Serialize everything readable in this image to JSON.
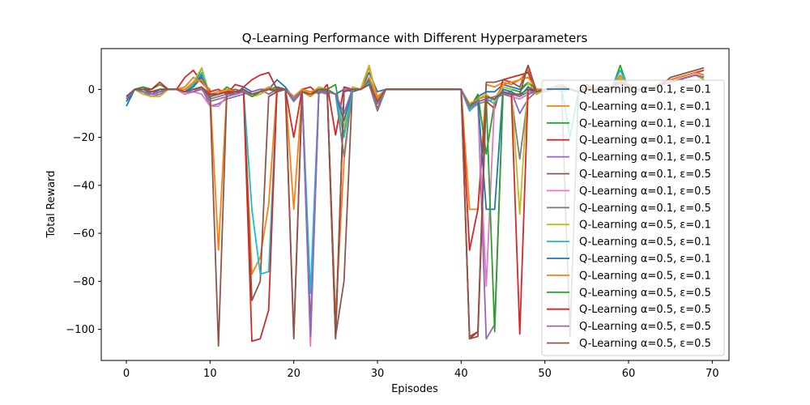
{
  "chart_data": {
    "type": "line",
    "title": "Q-Learning Performance with Different Hyperparameters",
    "xlabel": "Episodes",
    "ylabel": "Total Reward",
    "xlim": [
      -3,
      72
    ],
    "ylim": [
      -113,
      17
    ],
    "xticks": [
      0,
      10,
      20,
      30,
      40,
      50,
      60,
      70
    ],
    "yticks": [
      0,
      -20,
      -40,
      -60,
      -80,
      -100
    ],
    "xtick_labels": [
      "0",
      "10",
      "20",
      "30",
      "40",
      "50",
      "60",
      "70"
    ],
    "ytick_labels": [
      "0",
      "−20",
      "−40",
      "−60",
      "−80",
      "−100"
    ],
    "grid": false,
    "legend_position": "right",
    "x": [
      0,
      1,
      2,
      3,
      4,
      5,
      6,
      7,
      8,
      9,
      10,
      11,
      12,
      13,
      14,
      15,
      16,
      17,
      18,
      19,
      20,
      21,
      22,
      23,
      24,
      25,
      26,
      27,
      28,
      29,
      30,
      31,
      32,
      33,
      34,
      35,
      36,
      37,
      38,
      39,
      40,
      41,
      42,
      43,
      44,
      45,
      46,
      47,
      48,
      49,
      50,
      51,
      52,
      53,
      54,
      55,
      56,
      57,
      58,
      59,
      60,
      61,
      62,
      63,
      64,
      65,
      66,
      67,
      68,
      69
    ],
    "series": [
      {
        "name": "Q-Learning α=0.1, ε=0.1",
        "color": "#1f77b4",
        "values": [
          -7,
          0,
          1,
          -2,
          0,
          0,
          0,
          -1,
          2,
          6,
          -3,
          -2,
          0,
          -2,
          1,
          -1,
          0,
          0,
          4,
          1,
          -4,
          -1,
          -2,
          0,
          -1,
          -2,
          0,
          -1,
          0,
          7,
          -1,
          0,
          0,
          0,
          0,
          0,
          0,
          0,
          0,
          0,
          0,
          -7,
          -3,
          -1,
          -1,
          2,
          1,
          0,
          3,
          0,
          0,
          1,
          2,
          0,
          -1,
          1,
          0,
          0,
          1,
          3,
          2,
          0,
          0,
          1,
          2,
          3,
          4,
          5,
          6,
          5
        ]
      },
      {
        "name": "Q-Learning α=0.1, ε=0.1",
        "color": "#ff7f0e",
        "values": [
          -4,
          0,
          -2,
          -3,
          -1,
          0,
          0,
          1,
          5,
          3,
          0,
          -67,
          -1,
          -2,
          0,
          -77,
          -70,
          -48,
          1,
          0,
          -50,
          -1,
          -3,
          0,
          -2,
          -95,
          -30,
          0,
          0,
          9,
          -3,
          0,
          0,
          0,
          0,
          0,
          0,
          0,
          0,
          0,
          0,
          -50,
          -50,
          2,
          1,
          3,
          2,
          4,
          8,
          0,
          0,
          1,
          2,
          0,
          -1,
          1,
          0,
          0,
          1,
          6,
          2,
          0,
          0,
          1,
          3,
          4,
          5,
          6,
          7,
          6
        ]
      },
      {
        "name": "Q-Learning α=0.1, ε=0.1",
        "color": "#2ca02c",
        "values": [
          -5,
          0,
          1,
          0,
          2,
          0,
          0,
          0,
          1,
          9,
          -3,
          -2,
          1,
          -1,
          0,
          -3,
          -2,
          0,
          1,
          0,
          -5,
          0,
          -2,
          1,
          0,
          2,
          -19,
          1,
          0,
          4,
          -5,
          0,
          0,
          0,
          0,
          0,
          0,
          0,
          0,
          0,
          0,
          -8,
          -2,
          -27,
          -5,
          1,
          0,
          -1,
          3,
          -2,
          0,
          1,
          -1,
          0,
          -1,
          0,
          1,
          1,
          0,
          10,
          0,
          -1,
          1,
          0,
          2,
          3,
          4,
          5,
          6,
          4
        ]
      },
      {
        "name": "Q-Learning α=0.1, ε=0.1",
        "color": "#d62728",
        "values": [
          -3,
          0,
          0,
          0,
          3,
          0,
          0,
          5,
          8,
          3,
          -1,
          0,
          -2,
          2,
          1,
          4,
          6,
          7,
          0,
          0,
          -20,
          0,
          1,
          -2,
          2,
          -19,
          1,
          0,
          0,
          10,
          -5,
          0,
          0,
          0,
          0,
          0,
          0,
          0,
          0,
          0,
          0,
          -67,
          -50,
          -5,
          -8,
          4,
          5,
          6,
          7,
          -2,
          0,
          0,
          1,
          0,
          -1,
          1,
          0,
          0,
          1,
          4,
          2,
          0,
          0,
          1,
          3,
          4,
          5,
          6,
          7,
          8
        ]
      },
      {
        "name": "Q-Learning α=0.1, ε=0.5",
        "color": "#9467bd",
        "values": [
          -3,
          0,
          -1,
          -3,
          -2,
          0,
          0,
          -2,
          -1,
          1,
          -7,
          -6,
          -4,
          -3,
          -2,
          -1,
          0,
          -2,
          0,
          0,
          -4,
          -1,
          -104,
          -1,
          -2,
          -104,
          0,
          0,
          0,
          2,
          -8,
          0,
          0,
          0,
          0,
          0,
          0,
          0,
          0,
          0,
          0,
          -7,
          -5,
          -104,
          -98,
          -2,
          -1,
          -10,
          -4,
          -1,
          -1,
          0,
          1,
          0,
          -1,
          0,
          0,
          0,
          1,
          5,
          1,
          0,
          0,
          1,
          2,
          3,
          4,
          5,
          6,
          5
        ]
      },
      {
        "name": "Q-Learning α=0.1, ε=0.5",
        "color": "#8c564b",
        "values": [
          -3,
          0,
          0,
          -1,
          0,
          0,
          0,
          -1,
          -1,
          0,
          -3,
          -2,
          -1,
          0,
          -1,
          -88,
          -80,
          -3,
          -1,
          0,
          -4,
          -1,
          -99,
          0,
          0,
          -103,
          -80,
          0,
          0,
          3,
          -8,
          0,
          0,
          0,
          0,
          0,
          0,
          0,
          0,
          0,
          0,
          -103,
          -101,
          3,
          3,
          4,
          3,
          1,
          10,
          -1,
          0,
          1,
          2,
          0,
          -1,
          2,
          0,
          0,
          1,
          3,
          2,
          0,
          0,
          1,
          3,
          4,
          5,
          6,
          7,
          6
        ]
      },
      {
        "name": "Q-Learning α=0.1, ε=0.5",
        "color": "#e377c2",
        "values": [
          -3,
          0,
          -2,
          -3,
          -1,
          0,
          0,
          -2,
          -1,
          -2,
          -7,
          -7,
          -3,
          -2,
          -1,
          -2,
          -1,
          0,
          -1,
          0,
          -5,
          -1,
          -107,
          -1,
          -1,
          -2,
          -28,
          0,
          0,
          2,
          -6,
          0,
          0,
          0,
          0,
          0,
          0,
          0,
          0,
          0,
          0,
          -9,
          -6,
          -82,
          -4,
          -2,
          -3,
          -4,
          -2,
          -1,
          0,
          1,
          0,
          0,
          -1,
          0,
          0,
          0,
          1,
          2,
          1,
          0,
          0,
          1,
          2,
          3,
          4,
          5,
          6,
          5
        ]
      },
      {
        "name": "Q-Learning α=0.1, ε=0.5",
        "color": "#7f7f7f",
        "values": [
          -4,
          0,
          -1,
          -2,
          -1,
          0,
          0,
          -1,
          0,
          0,
          -5,
          -4,
          -3,
          -2,
          -1,
          -2,
          -1,
          0,
          -1,
          0,
          -5,
          -1,
          -2,
          -1,
          -1,
          -2,
          -28,
          0,
          0,
          2,
          -9,
          0,
          0,
          0,
          0,
          0,
          0,
          0,
          0,
          0,
          0,
          -8,
          -6,
          -5,
          -4,
          -2,
          -3,
          -29,
          -2,
          -1,
          0,
          1,
          0,
          -103,
          -1,
          0,
          0,
          0,
          1,
          4,
          1,
          0,
          0,
          1,
          2,
          3,
          4,
          5,
          6,
          5
        ]
      },
      {
        "name": "Q-Learning α=0.5, ε=0.1",
        "color": "#bcbd22",
        "values": [
          -3,
          0,
          -2,
          -3,
          -3,
          0,
          0,
          -1,
          3,
          9,
          -3,
          -2,
          0,
          -1,
          0,
          -3,
          -2,
          0,
          1,
          0,
          -3,
          0,
          -2,
          1,
          0,
          -2,
          -16,
          1,
          0,
          10,
          -5,
          0,
          0,
          0,
          0,
          0,
          0,
          0,
          0,
          0,
          0,
          -8,
          -4,
          -2,
          -5,
          1,
          0,
          -52,
          3,
          -2,
          0,
          1,
          -1,
          0,
          -1,
          0,
          1,
          1,
          0,
          5,
          0,
          -1,
          1,
          0,
          2,
          3,
          4,
          5,
          6,
          4
        ]
      },
      {
        "name": "Q-Learning α=0.5, ε=0.1",
        "color": "#17becf",
        "values": [
          -4,
          0,
          -1,
          -2,
          -1,
          0,
          0,
          -1,
          2,
          7,
          -3,
          -2,
          -1,
          -2,
          0,
          -50,
          -77,
          -76,
          0,
          0,
          -4,
          -1,
          -85,
          0,
          -1,
          -2,
          -20,
          0,
          0,
          3,
          -6,
          0,
          0,
          0,
          0,
          0,
          0,
          0,
          0,
          0,
          0,
          -9,
          -5,
          -4,
          -6,
          0,
          -1,
          -3,
          1,
          -1,
          0,
          0,
          1,
          -20,
          -1,
          0,
          0,
          0,
          1,
          8,
          1,
          0,
          0,
          1,
          2,
          3,
          4,
          5,
          6,
          5
        ]
      },
      {
        "name": "Q-Learning α=0.5, ε=0.1",
        "color": "#1f77b4",
        "values": [
          -5,
          0,
          -1,
          -2,
          -1,
          0,
          0,
          -1,
          1,
          5,
          -2,
          -2,
          -1,
          -2,
          -1,
          -2,
          -1,
          0,
          1,
          0,
          -3,
          -1,
          -2,
          0,
          -1,
          -2,
          -13,
          0,
          0,
          4,
          -4,
          0,
          0,
          0,
          0,
          0,
          0,
          0,
          0,
          0,
          0,
          -7,
          -4,
          -50,
          -50,
          0,
          -1,
          -3,
          1,
          -1,
          0,
          0,
          1,
          0,
          -1,
          0,
          0,
          0,
          1,
          4,
          1,
          0,
          0,
          1,
          2,
          3,
          4,
          5,
          6,
          5
        ]
      },
      {
        "name": "Q-Learning α=0.5, ε=0.1",
        "color": "#ff7f0e",
        "values": [
          -4,
          0,
          -1,
          -2,
          -1,
          0,
          0,
          0,
          3,
          4,
          -2,
          -1,
          0,
          -1,
          0,
          -2,
          -1,
          1,
          0,
          0,
          -3,
          0,
          -1,
          0,
          0,
          -2,
          -10,
          0,
          0,
          5,
          -4,
          0,
          0,
          0,
          0,
          0,
          0,
          0,
          0,
          0,
          0,
          -6,
          -4,
          -3,
          -4,
          2,
          3,
          4,
          5,
          0,
          0,
          1,
          2,
          0,
          -1,
          1,
          0,
          0,
          1,
          4,
          2,
          0,
          0,
          1,
          3,
          4,
          5,
          6,
          7,
          6
        ]
      },
      {
        "name": "Q-Learning α=0.5, ε=0.5",
        "color": "#2ca02c",
        "values": [
          -4,
          0,
          -1,
          -1,
          0,
          0,
          0,
          -1,
          0,
          1,
          -3,
          -2,
          -1,
          -2,
          -1,
          -3,
          -1,
          0,
          0,
          0,
          -4,
          -1,
          -2,
          -1,
          0,
          -2,
          -10,
          0,
          0,
          2,
          -5,
          0,
          0,
          0,
          0,
          0,
          0,
          0,
          0,
          0,
          0,
          -7,
          -5,
          -4,
          -101,
          -1,
          -2,
          -2,
          0,
          -1,
          0,
          0,
          1,
          0,
          -1,
          0,
          0,
          0,
          1,
          3,
          1,
          0,
          0,
          1,
          2,
          3,
          4,
          5,
          6,
          5
        ]
      },
      {
        "name": "Q-Learning α=0.5, ε=0.5",
        "color": "#d62728",
        "values": [
          -3,
          0,
          0,
          -1,
          0,
          0,
          0,
          -1,
          0,
          1,
          -2,
          -2,
          -1,
          -1,
          -1,
          -105,
          -104,
          -92,
          0,
          0,
          -103,
          -1,
          -2,
          0,
          0,
          -102,
          -1,
          0,
          0,
          2,
          -5,
          0,
          0,
          0,
          0,
          0,
          0,
          0,
          0,
          0,
          0,
          -104,
          -101,
          -3,
          -4,
          -1,
          -2,
          -102,
          0,
          -1,
          0,
          0,
          1,
          0,
          -1,
          0,
          0,
          0,
          1,
          3,
          1,
          0,
          0,
          1,
          2,
          3,
          4,
          5,
          6,
          5
        ]
      },
      {
        "name": "Q-Learning α=0.5, ε=0.5",
        "color": "#9467bd",
        "values": [
          -4,
          0,
          -1,
          -2,
          -1,
          0,
          0,
          -1,
          -1,
          0,
          -4,
          -3,
          -2,
          -2,
          -1,
          -2,
          -1,
          0,
          -1,
          0,
          -4,
          -1,
          -103,
          -1,
          -1,
          -2,
          -10,
          0,
          0,
          2,
          -6,
          0,
          0,
          0,
          0,
          0,
          0,
          0,
          0,
          0,
          0,
          -8,
          -5,
          -4,
          -3,
          -2,
          -2,
          -3,
          -1,
          -1,
          0,
          0,
          1,
          0,
          -1,
          0,
          0,
          0,
          1,
          3,
          1,
          0,
          0,
          1,
          2,
          3,
          4,
          5,
          6,
          5
        ]
      },
      {
        "name": "Q-Learning α=0.5, ε=0.5",
        "color": "#8c564b",
        "values": [
          -3,
          0,
          0,
          -1,
          0,
          0,
          0,
          -1,
          0,
          1,
          -3,
          -107,
          -2,
          -1,
          0,
          -2,
          -1,
          0,
          -1,
          0,
          -104,
          -1,
          -2,
          0,
          0,
          -104,
          -1,
          0,
          0,
          2,
          -5,
          0,
          0,
          0,
          0,
          0,
          0,
          0,
          0,
          0,
          0,
          -104,
          -103,
          -3,
          -4,
          -1,
          -2,
          -2,
          10,
          -1,
          0,
          0,
          1,
          0,
          -1,
          0,
          0,
          0,
          1,
          3,
          1,
          0,
          0,
          1,
          2,
          5,
          6,
          7,
          8,
          9
        ]
      }
    ]
  }
}
